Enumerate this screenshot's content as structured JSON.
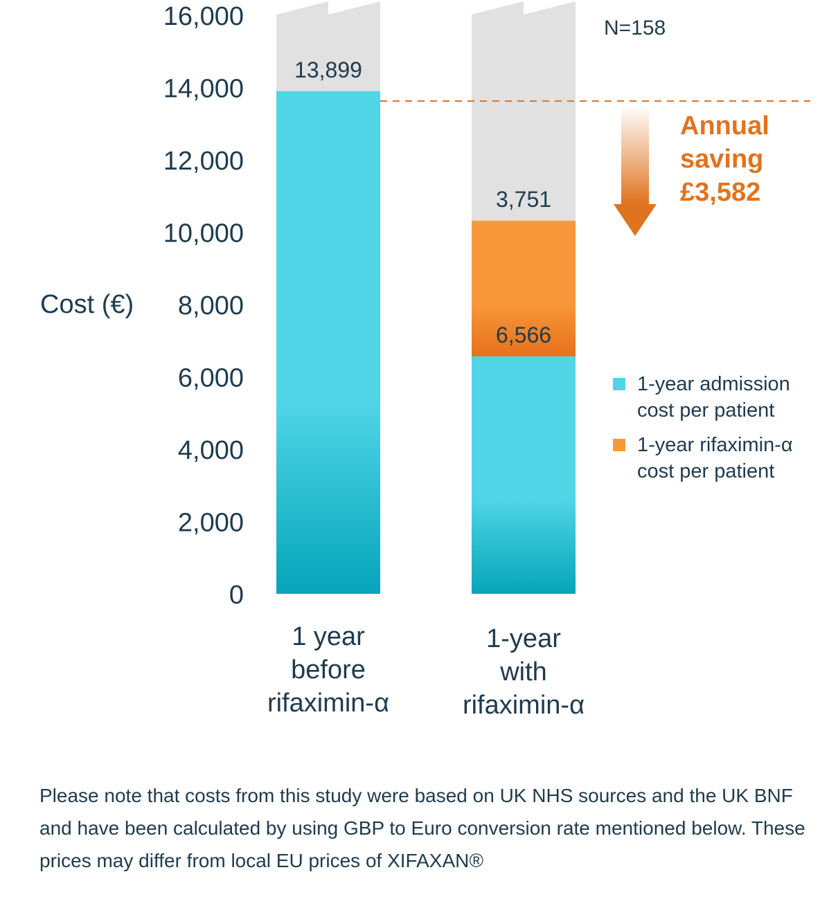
{
  "chart_data": {
    "type": "bar",
    "stacked": true,
    "ylabel": "Cost (€)",
    "ylim": [
      0,
      16000
    ],
    "yticks": [
      0,
      2000,
      4000,
      6000,
      8000,
      10000,
      12000,
      14000,
      16000
    ],
    "ytick_labels": [
      "0",
      "2,000",
      "4,000",
      "6,000",
      "8,000",
      "10,000",
      "12,000",
      "14,000",
      "16,000"
    ],
    "categories": [
      [
        "1 year",
        "before",
        "rifaximin-α"
      ],
      [
        "1-year",
        "with",
        "rifaximin-α"
      ]
    ],
    "series": [
      {
        "name": "1-year admission cost per patient",
        "color": "#4fd5e6",
        "values": [
          13899,
          6566
        ]
      },
      {
        "name": "1-year rifaximin-α cost per patient",
        "color": "#f7993a",
        "values": [
          0,
          3751
        ]
      }
    ],
    "data_labels": [
      "13,899",
      "6,566",
      "3,751"
    ],
    "n_label": "N=158",
    "reference_line": {
      "value": 13899,
      "style": "dashed",
      "color": "#e0731f"
    },
    "annotation": {
      "lines": [
        "Annual",
        "saving",
        "£3,582"
      ],
      "color": "#e0731f"
    },
    "axis_break": "top",
    "legend_placement": "right",
    "grid": false
  },
  "legend": {
    "items": [
      {
        "line1": "1-year admission",
        "line2": "cost per patient",
        "color": "#4fd5e6"
      },
      {
        "line1": "1-year rifaximin-α",
        "line2": "cost per patient",
        "color": "#f7993a"
      }
    ]
  },
  "footnote": "Please note that costs from this study were based on UK NHS sources and the UK BNF and have been calculated by using GBP to Euro conversion rate mentioned below. These prices may differ from local EU prices of XIFAXAN®"
}
